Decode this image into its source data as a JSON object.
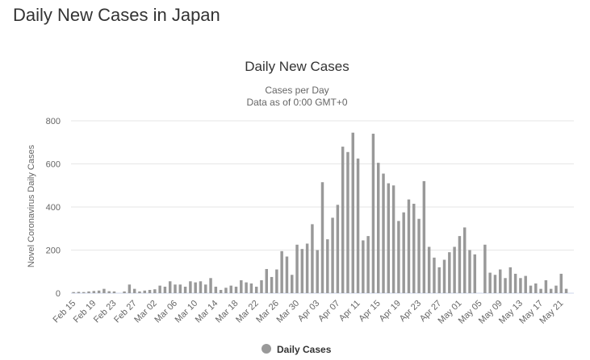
{
  "page": {
    "heading": "Daily New Cases in Japan"
  },
  "chart_data": {
    "type": "bar",
    "title": "Daily New Cases",
    "subtitle_lines": [
      "Cases per Day",
      "Data as of 0:00 GMT+0"
    ],
    "ylabel": "Novel Coronavirus Daily Cases",
    "xlabel": "",
    "ylim": [
      0,
      800
    ],
    "yticks": [
      0,
      200,
      400,
      600,
      800
    ],
    "grid": true,
    "legend_position": "bottom",
    "colors": {
      "bar": "#999999",
      "grid": "#e6e6e6",
      "axis": "#ccd6eb"
    },
    "categories": [
      "Feb 15",
      "Feb 16",
      "Feb 17",
      "Feb 18",
      "Feb 19",
      "Feb 20",
      "Feb 21",
      "Feb 22",
      "Feb 23",
      "Feb 24",
      "Feb 25",
      "Feb 26",
      "Feb 27",
      "Feb 28",
      "Feb 29",
      "Mar 01",
      "Mar 02",
      "Mar 03",
      "Mar 04",
      "Mar 05",
      "Mar 06",
      "Mar 07",
      "Mar 08",
      "Mar 09",
      "Mar 10",
      "Mar 11",
      "Mar 12",
      "Mar 13",
      "Mar 14",
      "Mar 15",
      "Mar 16",
      "Mar 17",
      "Mar 18",
      "Mar 19",
      "Mar 20",
      "Mar 21",
      "Mar 22",
      "Mar 23",
      "Mar 24",
      "Mar 25",
      "Mar 26",
      "Mar 27",
      "Mar 28",
      "Mar 29",
      "Mar 30",
      "Mar 31",
      "Apr 01",
      "Apr 02",
      "Apr 03",
      "Apr 04",
      "Apr 05",
      "Apr 06",
      "Apr 07",
      "Apr 08",
      "Apr 09",
      "Apr 10",
      "Apr 11",
      "Apr 12",
      "Apr 13",
      "Apr 14",
      "Apr 15",
      "Apr 16",
      "Apr 17",
      "Apr 18",
      "Apr 19",
      "Apr 20",
      "Apr 21",
      "Apr 22",
      "Apr 23",
      "Apr 24",
      "Apr 25",
      "Apr 26",
      "Apr 27",
      "Apr 28",
      "Apr 29",
      "Apr 30",
      "May 01",
      "May 02",
      "May 03",
      "May 04",
      "May 05",
      "May 06",
      "May 07",
      "May 08",
      "May 09",
      "May 10",
      "May 11",
      "May 12",
      "May 13",
      "May 14",
      "May 15",
      "May 16",
      "May 17",
      "May 18",
      "May 19",
      "May 20",
      "May 21",
      "May 22",
      "May 23"
    ],
    "tick_labels": [
      "Feb 15",
      "Feb 19",
      "Feb 23",
      "Feb 27",
      "Mar 02",
      "Mar 06",
      "Mar 10",
      "Mar 14",
      "Mar 18",
      "Mar 22",
      "Mar 26",
      "Mar 30",
      "Apr 03",
      "Apr 07",
      "Apr 11",
      "Apr 15",
      "Apr 19",
      "Apr 23",
      "Apr 27",
      "May 01",
      "May 05",
      "May 09",
      "May 13",
      "May 17",
      "May 21"
    ],
    "series": [
      {
        "name": "Daily Cases",
        "values": [
          5,
          6,
          5,
          8,
          10,
          12,
          20,
          9,
          8,
          0,
          8,
          40,
          20,
          8,
          12,
          15,
          18,
          35,
          30,
          55,
          40,
          40,
          30,
          55,
          50,
          55,
          40,
          70,
          30,
          15,
          25,
          35,
          30,
          60,
          50,
          45,
          30,
          60,
          112,
          75,
          110,
          195,
          170,
          85,
          225,
          205,
          230,
          320,
          200,
          515,
          250,
          350,
          410,
          680,
          655,
          745,
          625,
          245,
          265,
          740,
          605,
          555,
          510,
          500,
          335,
          375,
          435,
          415,
          345,
          520,
          215,
          165,
          120,
          155,
          190,
          215,
          265,
          305,
          200,
          180,
          0,
          225,
          95,
          85,
          110,
          70,
          120,
          90,
          70,
          80,
          35,
          45,
          20,
          60,
          20,
          35,
          90,
          20,
          0
        ]
      }
    ]
  }
}
